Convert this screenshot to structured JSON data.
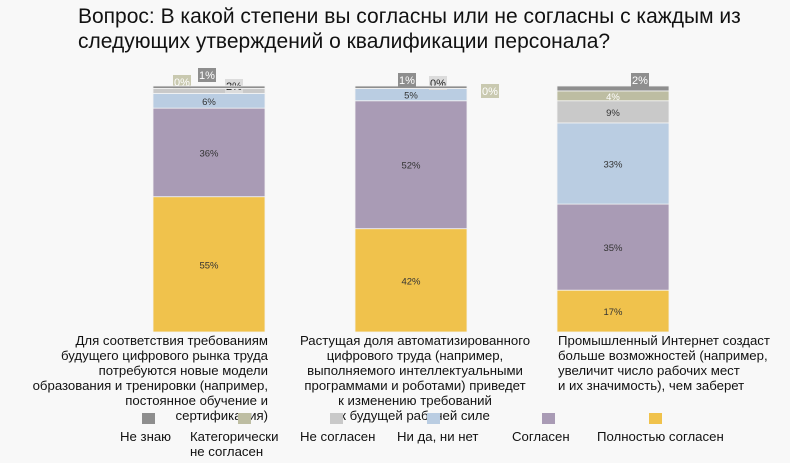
{
  "chart_data": {
    "type": "bar",
    "stacked": true,
    "title": "Вопрос: В какой степени вы согласны или не согласны с каждым из следующих утверждений о квалификации персонала?",
    "categories": [
      "Для соответствия требованиям будущего цифрового рынка труда потребуются новые модели образования и тренировки (например, постоянное обучение и сертификация)",
      "Растущая доля автоматизированного цифрового труда (например, выполняемого интеллектуальными программами и роботами) приведет к изменению требований к будущей рабочей силе",
      "Промышленный Интернет создаст больше возможностей (например, увеличит число рабочих мест и их значимость), чем заберет"
    ],
    "category_lines": [
      [
        "Для соответствия требованиям",
        "будущего цифрового рынка труда",
        "потребуются новые модели",
        "образования и тренировки (например,",
        "постоянное обучение и сертификация)"
      ],
      [
        "Растущая доля автоматизированного",
        "цифрового труда (например,",
        "выполняемого интеллектуальными",
        "программами и роботами) приведет",
        "к изменению требований",
        "к будущей рабочей силе"
      ],
      [
        "Промышленный Интернет создаст",
        "больше возможностей (например,",
        "увеличит число рабочих мест",
        "и их значимость), чем заберет"
      ]
    ],
    "series": [
      {
        "name": "Полностью согласен",
        "color": "#f0c24c",
        "values": [
          55,
          42,
          17
        ]
      },
      {
        "name": "Согласен",
        "color": "#a99bb5",
        "values": [
          36,
          52,
          35
        ]
      },
      {
        "name": "Ни да, ни нет",
        "color": "#bacde2",
        "values": [
          6,
          5,
          33
        ]
      },
      {
        "name": "Не согласен",
        "color": "#c9c9c9",
        "values": [
          2,
          0,
          9
        ]
      },
      {
        "name": "Категорически не согласен",
        "color": "#bdbda2",
        "values": [
          0,
          0,
          4
        ]
      },
      {
        "name": "Не знаю",
        "color": "#8e8e8e",
        "values": [
          1,
          1,
          2
        ]
      }
    ],
    "legend_order": [
      "Не знаю",
      "Категорически не согласен",
      "Не согласен",
      "Ни да, ни нет",
      "Согласен",
      "Полностью согласен"
    ],
    "legend_lines": {
      "Категорически не согласен": [
        "Категорически",
        "не согласен"
      ]
    },
    "value_suffix": "%",
    "ylim": [
      0,
      100
    ],
    "legend_position": "bottom"
  }
}
